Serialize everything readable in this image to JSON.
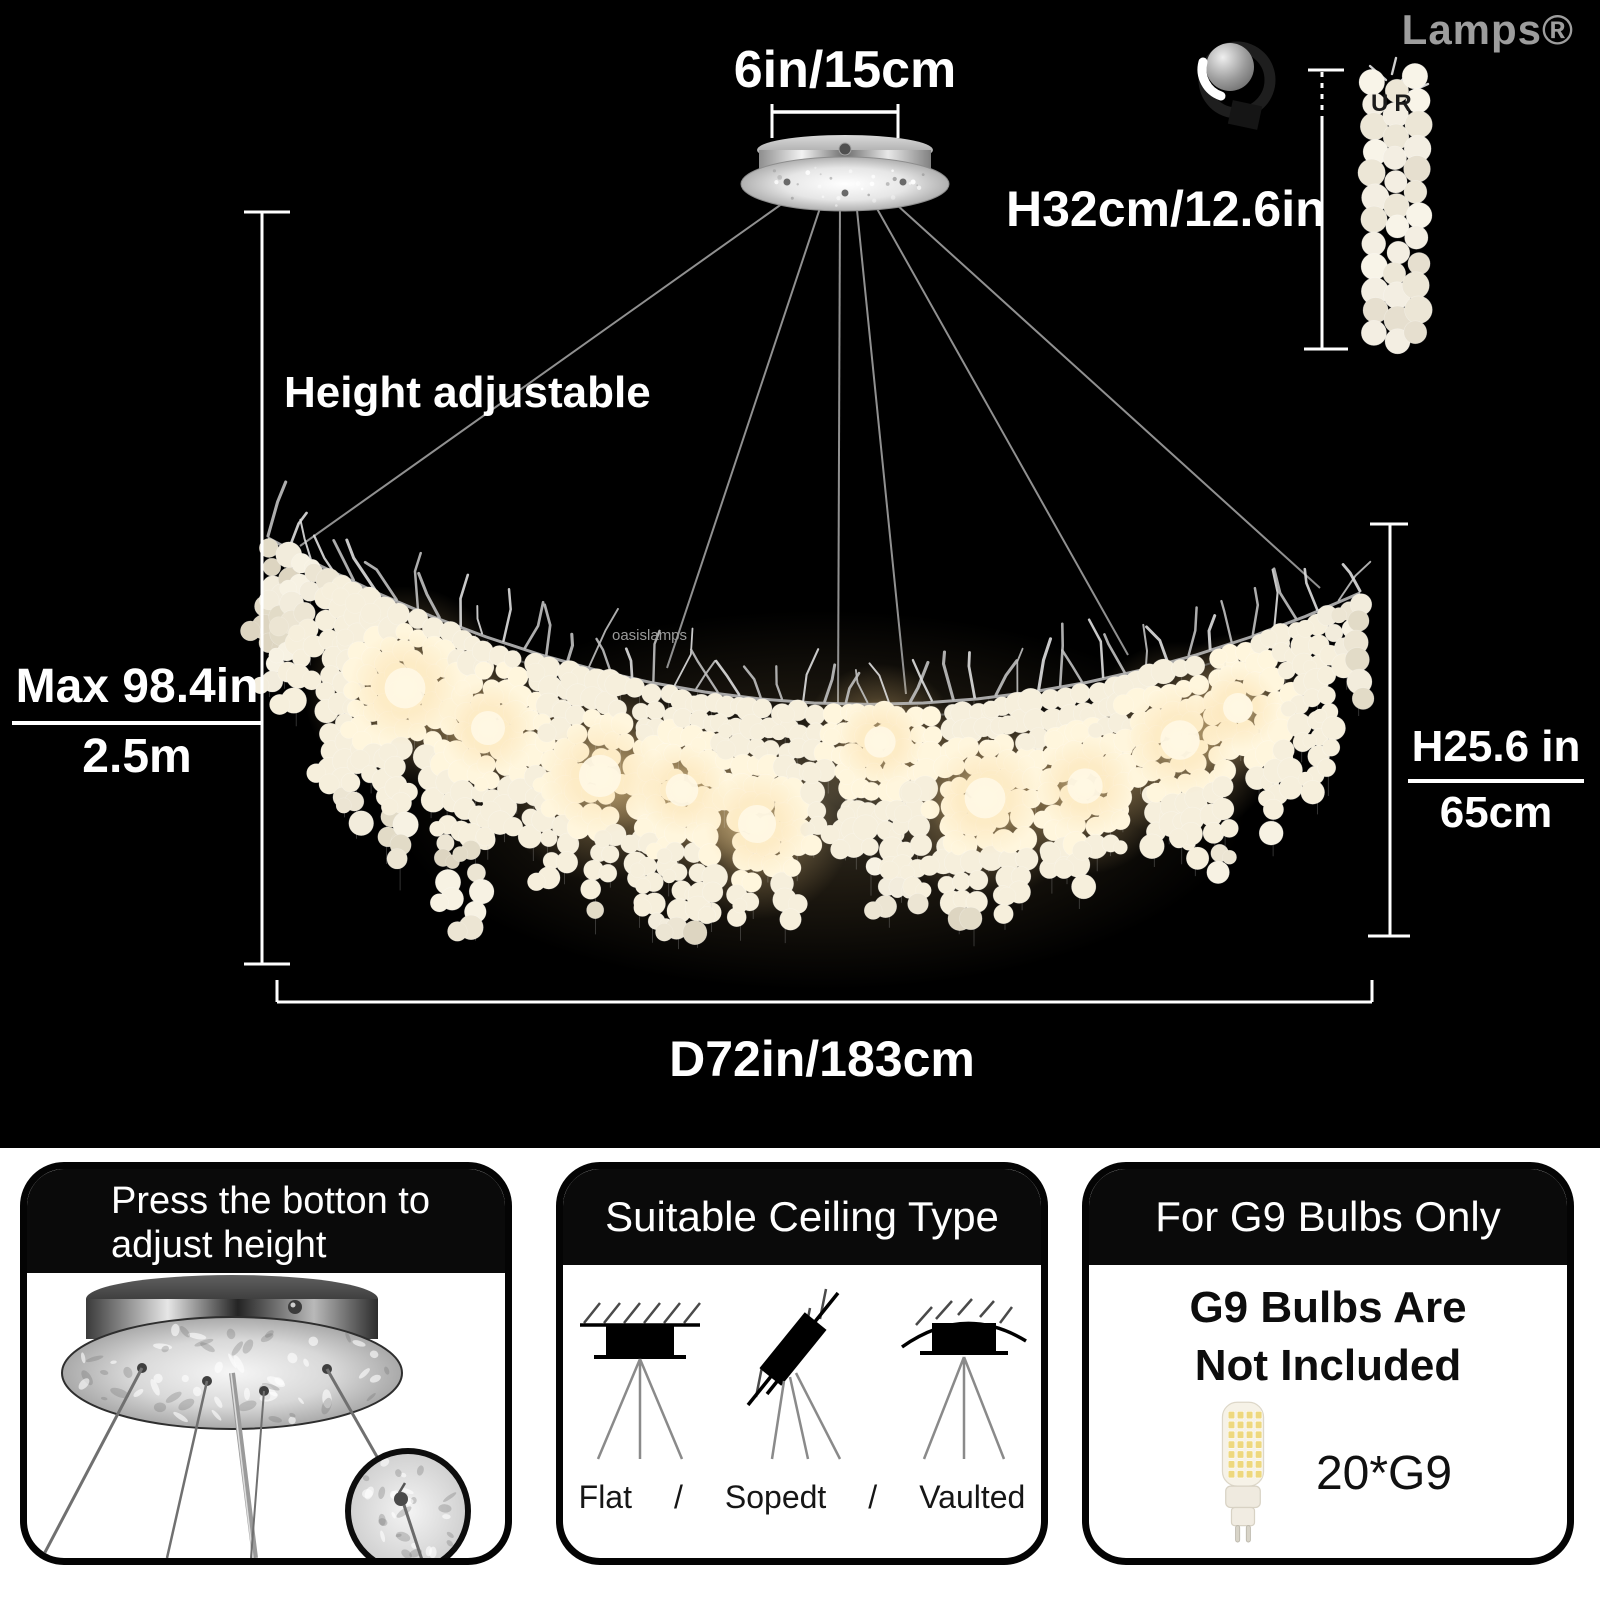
{
  "brand": {
    "logo_text": "Lamps®"
  },
  "watermarks": {
    "center": "oasislamps",
    "strand": "UR"
  },
  "annotations": {
    "canopy_width": "6in/15cm",
    "hanger_height": "H32cm/12.6in",
    "height_adjustable": "Height adjustable",
    "max_drop_line1": "Max 98.4in",
    "max_drop_line2": "2.5m",
    "body_height_line1": "H25.6 in",
    "body_height_line2": "65cm",
    "diameter": "D72in/183cm"
  },
  "panels": [
    {
      "title_line1": "Press the botton to",
      "title_line2": "adjust height"
    },
    {
      "title": "Suitable Ceiling Type",
      "labels": [
        "Flat",
        "/",
        "Sopedt",
        "/",
        "Vaulted"
      ]
    },
    {
      "title": "For G9 Bulbs Only",
      "note_line1": "G9 Bulbs Are",
      "note_line2": "Not Included",
      "bulb_count": "20*G9"
    }
  ],
  "icons": {
    "brand_mark": "brand-mark-icon",
    "flat": "flat-ceiling-icon",
    "sloped": "sloped-ceiling-icon",
    "vaulted": "vaulted-ceiling-icon",
    "bulb": "g9-bulb-icon"
  },
  "colors": {
    "background": "#000000",
    "strip_bg": "#ffffff",
    "header_bg": "#0a0a0a",
    "panel_border": "#040404",
    "text_light": "#ffffff",
    "text_dark": "#111111",
    "logo": "#9d9d9d",
    "watermark": "#9a9a9a",
    "dimension_line": "#ffffff",
    "coin": "#ece5d3",
    "coin_bright": "#fff6dd",
    "glow": "#ffe9b8",
    "cable": "#989898",
    "led": "#eed87e",
    "chrome_light": "#e8e8e8",
    "chrome_dark": "#6d6d6d"
  }
}
